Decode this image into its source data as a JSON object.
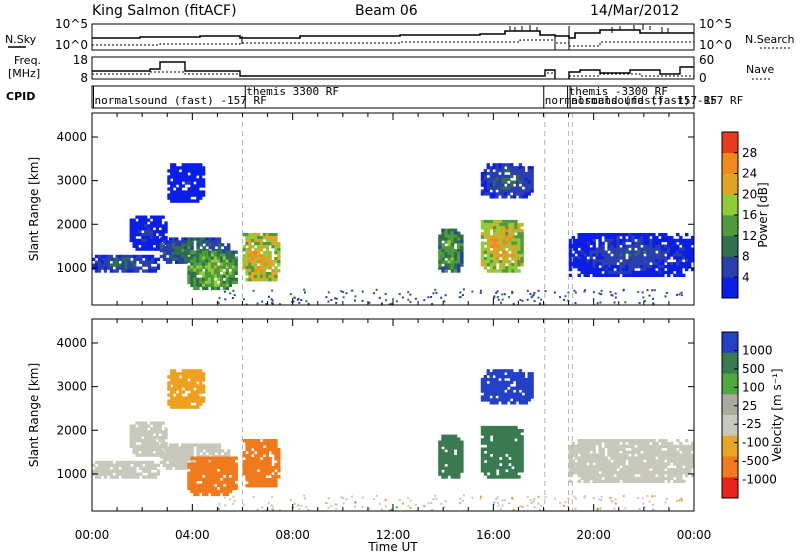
{
  "header": {
    "station": "King Salmon (fitACF)",
    "beam": "Beam 06",
    "date": "14/Mar/2012"
  },
  "noise_panel": {
    "left_label": "N.Sky",
    "right_label": "N.Search",
    "left_ticks": [
      "10^5",
      "10^0"
    ],
    "right_ticks": [
      "10^5",
      "10^0"
    ]
  },
  "freq_panel": {
    "left_label_1": "Freq.",
    "left_label_2": "[MHz]",
    "right_label": "Nave",
    "left_ticks": [
      "18",
      "8"
    ],
    "right_ticks": [
      "60",
      "0"
    ]
  },
  "cpid_panel": {
    "label": "CPID",
    "entries": [
      {
        "text": "normalsound (fast) -157 RF",
        "hour": 0.1,
        "row": 1
      },
      {
        "text": "themis 3300 RF",
        "hour": 6.15,
        "row": 0
      },
      {
        "text": "normalsound (fast) -157 RF",
        "hour": 18.05,
        "row": 1
      },
      {
        "text": "themis -3300 RF",
        "hour": 19.0,
        "row": 0
      },
      {
        "text": "normalsound (fast) -157 RF",
        "hour": 19.1,
        "row": 1
      }
    ]
  },
  "power_panel": {
    "ylabel": "Slant Range [km]",
    "yticks": [
      "1000",
      "2000",
      "3000",
      "4000"
    ],
    "colorbar_label": "Power [dB]",
    "colorbar_ticks": [
      "4",
      "8",
      "12",
      "16",
      "20",
      "24",
      "28"
    ]
  },
  "velocity_panel": {
    "ylabel": "Slant Range [km]",
    "yticks": [
      "1000",
      "2000",
      "3000",
      "4000"
    ],
    "colorbar_label": "Velocity [m s⁻¹]",
    "colorbar_ticks": [
      "1000",
      "500",
      "100",
      "25",
      "-25",
      "-100",
      "-500",
      "-1000"
    ]
  },
  "xaxis": {
    "label": "Time UT",
    "ticks": [
      "00:00",
      "04:00",
      "08:00",
      "12:00",
      "16:00",
      "20:00",
      "00:00"
    ]
  },
  "colors": {
    "power_scale": [
      "#0a1ee6",
      "#2a3fae",
      "#2f6f4a",
      "#4e9a3d",
      "#8fcc39",
      "#e0a524",
      "#f08a1f",
      "#e83c1c"
    ],
    "velocity_scale": [
      "#2340c6",
      "#3a7a50",
      "#4ea83e",
      "#a9ab9e",
      "#c8c8bc",
      "#e6a726",
      "#f07a1c",
      "#e8241c"
    ],
    "velocity_blue": "#2340c6",
    "velocity_green_dark": "#3a7a50",
    "velocity_green_light": "#4ea83e",
    "velocity_grey": "#c8c8bc",
    "velocity_orange": "#f0a020",
    "velocity_dark_orange": "#f07a1c"
  },
  "chart_data": [
    {
      "type": "heatmap",
      "title": "Power",
      "xlabel": "Time UT",
      "ylabel": "Slant Range [km]",
      "xlim": [
        0,
        24
      ],
      "ylim": [
        150,
        4550
      ],
      "colorbar_range": [
        0,
        32
      ],
      "colorbar_label": "Power [dB]",
      "regions": [
        {
          "t0": 0.0,
          "t1": 2.7,
          "r0": 900,
          "r1": 1300,
          "value": 10
        },
        {
          "t0": 1.5,
          "t1": 3.0,
          "r0": 1400,
          "r1": 2200,
          "value": 6
        },
        {
          "t0": 2.7,
          "t1": 5.5,
          "r0": 1100,
          "r1": 1700,
          "value": 12
        },
        {
          "t0": 3.0,
          "t1": 4.5,
          "r0": 2500,
          "r1": 3400,
          "value": 5
        },
        {
          "t0": 3.8,
          "t1": 5.8,
          "r0": 500,
          "r1": 1400,
          "value": 18
        },
        {
          "t0": 6.0,
          "t1": 7.5,
          "r0": 700,
          "r1": 1800,
          "value": 24
        },
        {
          "t0": 13.8,
          "t1": 14.8,
          "r0": 900,
          "r1": 1900,
          "value": 16
        },
        {
          "t0": 15.5,
          "t1": 17.2,
          "r0": 900,
          "r1": 2100,
          "value": 24
        },
        {
          "t0": 15.5,
          "t1": 17.6,
          "r0": 2600,
          "r1": 3400,
          "value": 10
        },
        {
          "t0": 19.0,
          "t1": 24.0,
          "r0": 800,
          "r1": 1800,
          "value": 8
        }
      ]
    },
    {
      "type": "heatmap",
      "title": "Velocity",
      "xlabel": "Time UT",
      "ylabel": "Slant Range [km]",
      "xlim": [
        0,
        24
      ],
      "ylim": [
        150,
        4550
      ],
      "colorbar_range": [
        -1000,
        1000
      ],
      "colorbar_label": "Velocity [m s⁻¹]",
      "regions": [
        {
          "t0": 0.0,
          "t1": 2.7,
          "r0": 900,
          "r1": 1300,
          "value": 0
        },
        {
          "t0": 1.5,
          "t1": 3.0,
          "r0": 1400,
          "r1": 2200,
          "value": -10
        },
        {
          "t0": 2.7,
          "t1": 5.5,
          "r0": 1100,
          "r1": 1700,
          "value": -10
        },
        {
          "t0": 3.0,
          "t1": 4.5,
          "r0": 2500,
          "r1": 3400,
          "value": -50
        },
        {
          "t0": 3.8,
          "t1": 5.8,
          "r0": 500,
          "r1": 1400,
          "value": -150
        },
        {
          "t0": 6.0,
          "t1": 7.5,
          "r0": 700,
          "r1": 1800,
          "value": -200
        },
        {
          "t0": 13.8,
          "t1": 14.8,
          "r0": 900,
          "r1": 1900,
          "value": 300
        },
        {
          "t0": 15.5,
          "t1": 17.2,
          "r0": 900,
          "r1": 2100,
          "value": 400
        },
        {
          "t0": 15.5,
          "t1": 17.6,
          "r0": 2600,
          "r1": 3400,
          "value": 700
        },
        {
          "t0": 19.0,
          "t1": 24.0,
          "r0": 800,
          "r1": 1800,
          "value": 0
        }
      ]
    }
  ]
}
